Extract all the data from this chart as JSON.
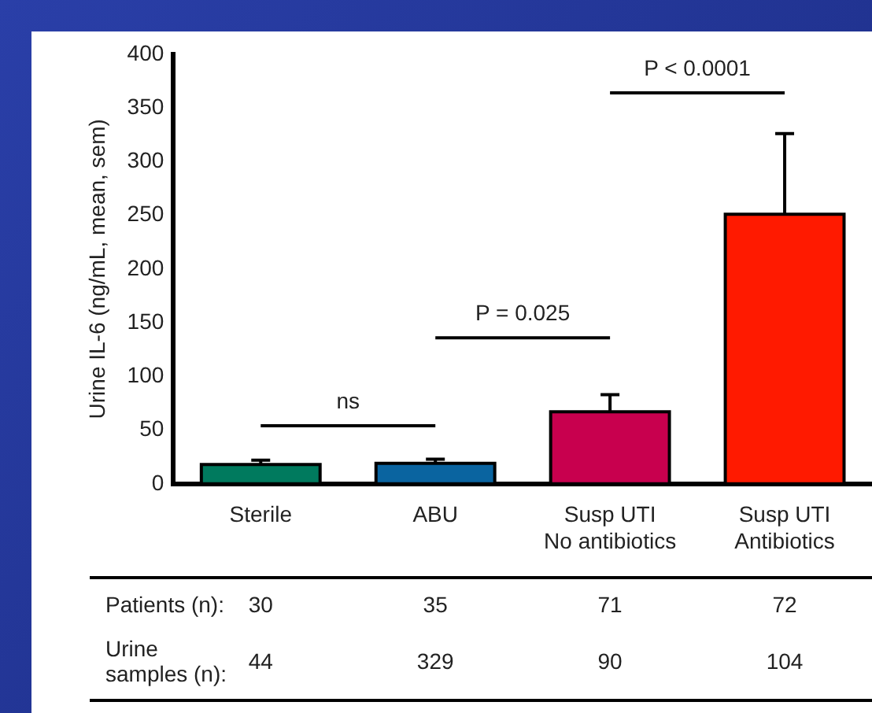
{
  "chart_data": {
    "type": "bar",
    "ylabel": "Urine IL-6 (ng/mL, mean, sem)",
    "categories": [
      "Sterile",
      "ABU",
      "Susp UTI\nNo antibiotics",
      "Susp UTI\nAntibiotics"
    ],
    "values": [
      18,
      19,
      67,
      251
    ],
    "colors": [
      "#007a5e",
      "#0a64a0",
      "#c8004e",
      "#ff1a00"
    ],
    "errors": [
      [
        18,
        22
      ],
      [
        19,
        23
      ],
      [
        67,
        83
      ],
      [
        251,
        326
      ]
    ],
    "ylim": [
      0,
      400
    ],
    "yticks": [
      0,
      50,
      100,
      150,
      200,
      250,
      300,
      350,
      400
    ],
    "grid": false,
    "legend": false,
    "annotations": [
      "ns",
      "P = 0.025",
      "P < 0.0001",
      "Patients (n):",
      "30",
      "35",
      "71",
      "72",
      "Urine\nsamples (n):",
      "44",
      "329",
      "90",
      "104"
    ]
  }
}
